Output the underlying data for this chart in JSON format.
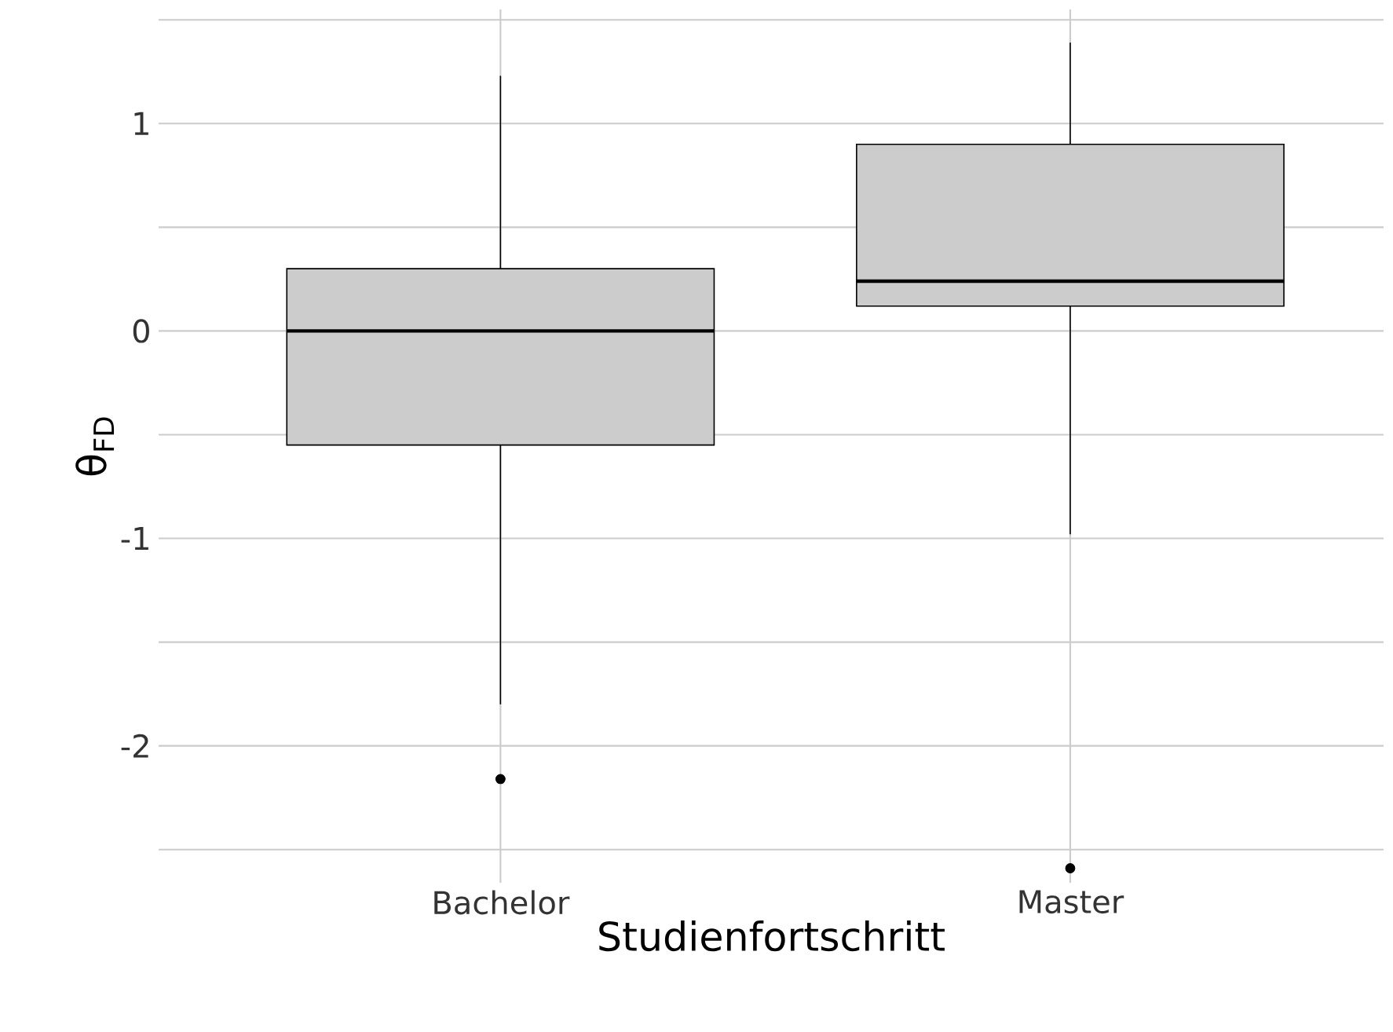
{
  "chart_data": {
    "type": "box",
    "xlabel": "Studienfortschritt",
    "ylabel": "θ$_{FD}$",
    "categories": [
      "Bachelor",
      "Master"
    ],
    "boxes": [
      {
        "low": -1.8,
        "q1": -0.55,
        "median": 0.0,
        "q3": 0.3,
        "high": 1.23,
        "outliers": [
          -2.16
        ]
      },
      {
        "low": -0.98,
        "q1": 0.12,
        "median": 0.24,
        "q3": 0.9,
        "high": 1.39,
        "outliers": [
          -2.59
        ]
      }
    ],
    "color": "#cccccc",
    "ylim": [
      -2.66,
      1.55
    ],
    "yticks": [
      {
        "value": -2.5,
        "label": null
      },
      -2,
      {
        "value": -1.5,
        "label": null
      },
      -1,
      {
        "value": -0.5,
        "label": null
      },
      0,
      {
        "value": 0.5,
        "label": null
      },
      1,
      {
        "value": 1.5,
        "label": null
      }
    ],
    "grid": true
  }
}
